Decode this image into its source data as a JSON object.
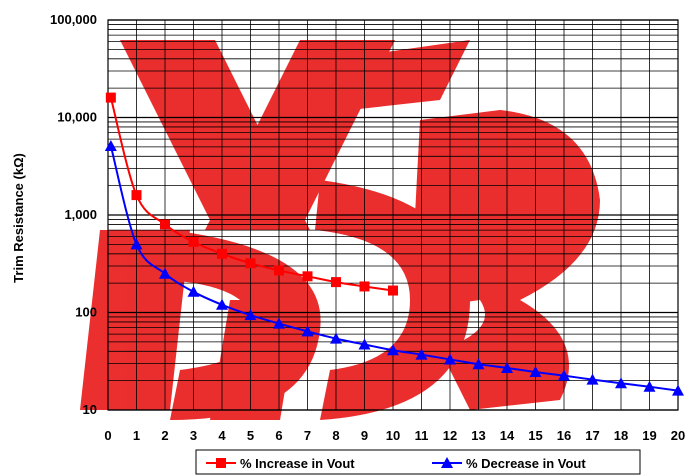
{
  "chart_data": {
    "type": "line",
    "title": "",
    "xlabel": "",
    "ylabel": "Trim Resistance (kΩ)",
    "x_scale": "linear",
    "y_scale": "log",
    "xlim": [
      0,
      20
    ],
    "ylim": [
      10,
      100000
    ],
    "x_ticks": [
      "0",
      "1",
      "2",
      "3",
      "4",
      "5",
      "6",
      "7",
      "8",
      "9",
      "10",
      "11",
      "12",
      "13",
      "14",
      "15",
      "16",
      "17",
      "18",
      "19",
      "20"
    ],
    "y_ticks": [
      "10",
      "100",
      "1,000",
      "10,000",
      "100,000"
    ],
    "grid": true,
    "legend_position": "bottom",
    "watermark": "logo",
    "series": [
      {
        "name": "% Increase in Vout",
        "color": "#ff0000",
        "marker": "square",
        "x": [
          0.1,
          1,
          2,
          3,
          4,
          5,
          6,
          7,
          8,
          9,
          10
        ],
        "y": [
          16000,
          1600,
          800,
          530,
          400,
          320,
          270,
          235,
          205,
          185,
          168
        ]
      },
      {
        "name": "% Decrease in Vout",
        "color": "#0000ff",
        "marker": "triangle",
        "x": [
          0.1,
          1,
          2,
          3,
          4,
          5,
          6,
          7,
          8,
          9,
          10,
          11,
          12,
          13,
          14,
          15,
          16,
          17,
          18,
          19,
          20
        ],
        "y": [
          5100,
          500,
          250,
          163,
          120,
          94,
          77,
          64,
          54,
          47,
          41,
          37,
          33,
          29.5,
          27,
          24.5,
          22.5,
          20.5,
          18.8,
          17.3,
          15.8
        ]
      }
    ]
  }
}
